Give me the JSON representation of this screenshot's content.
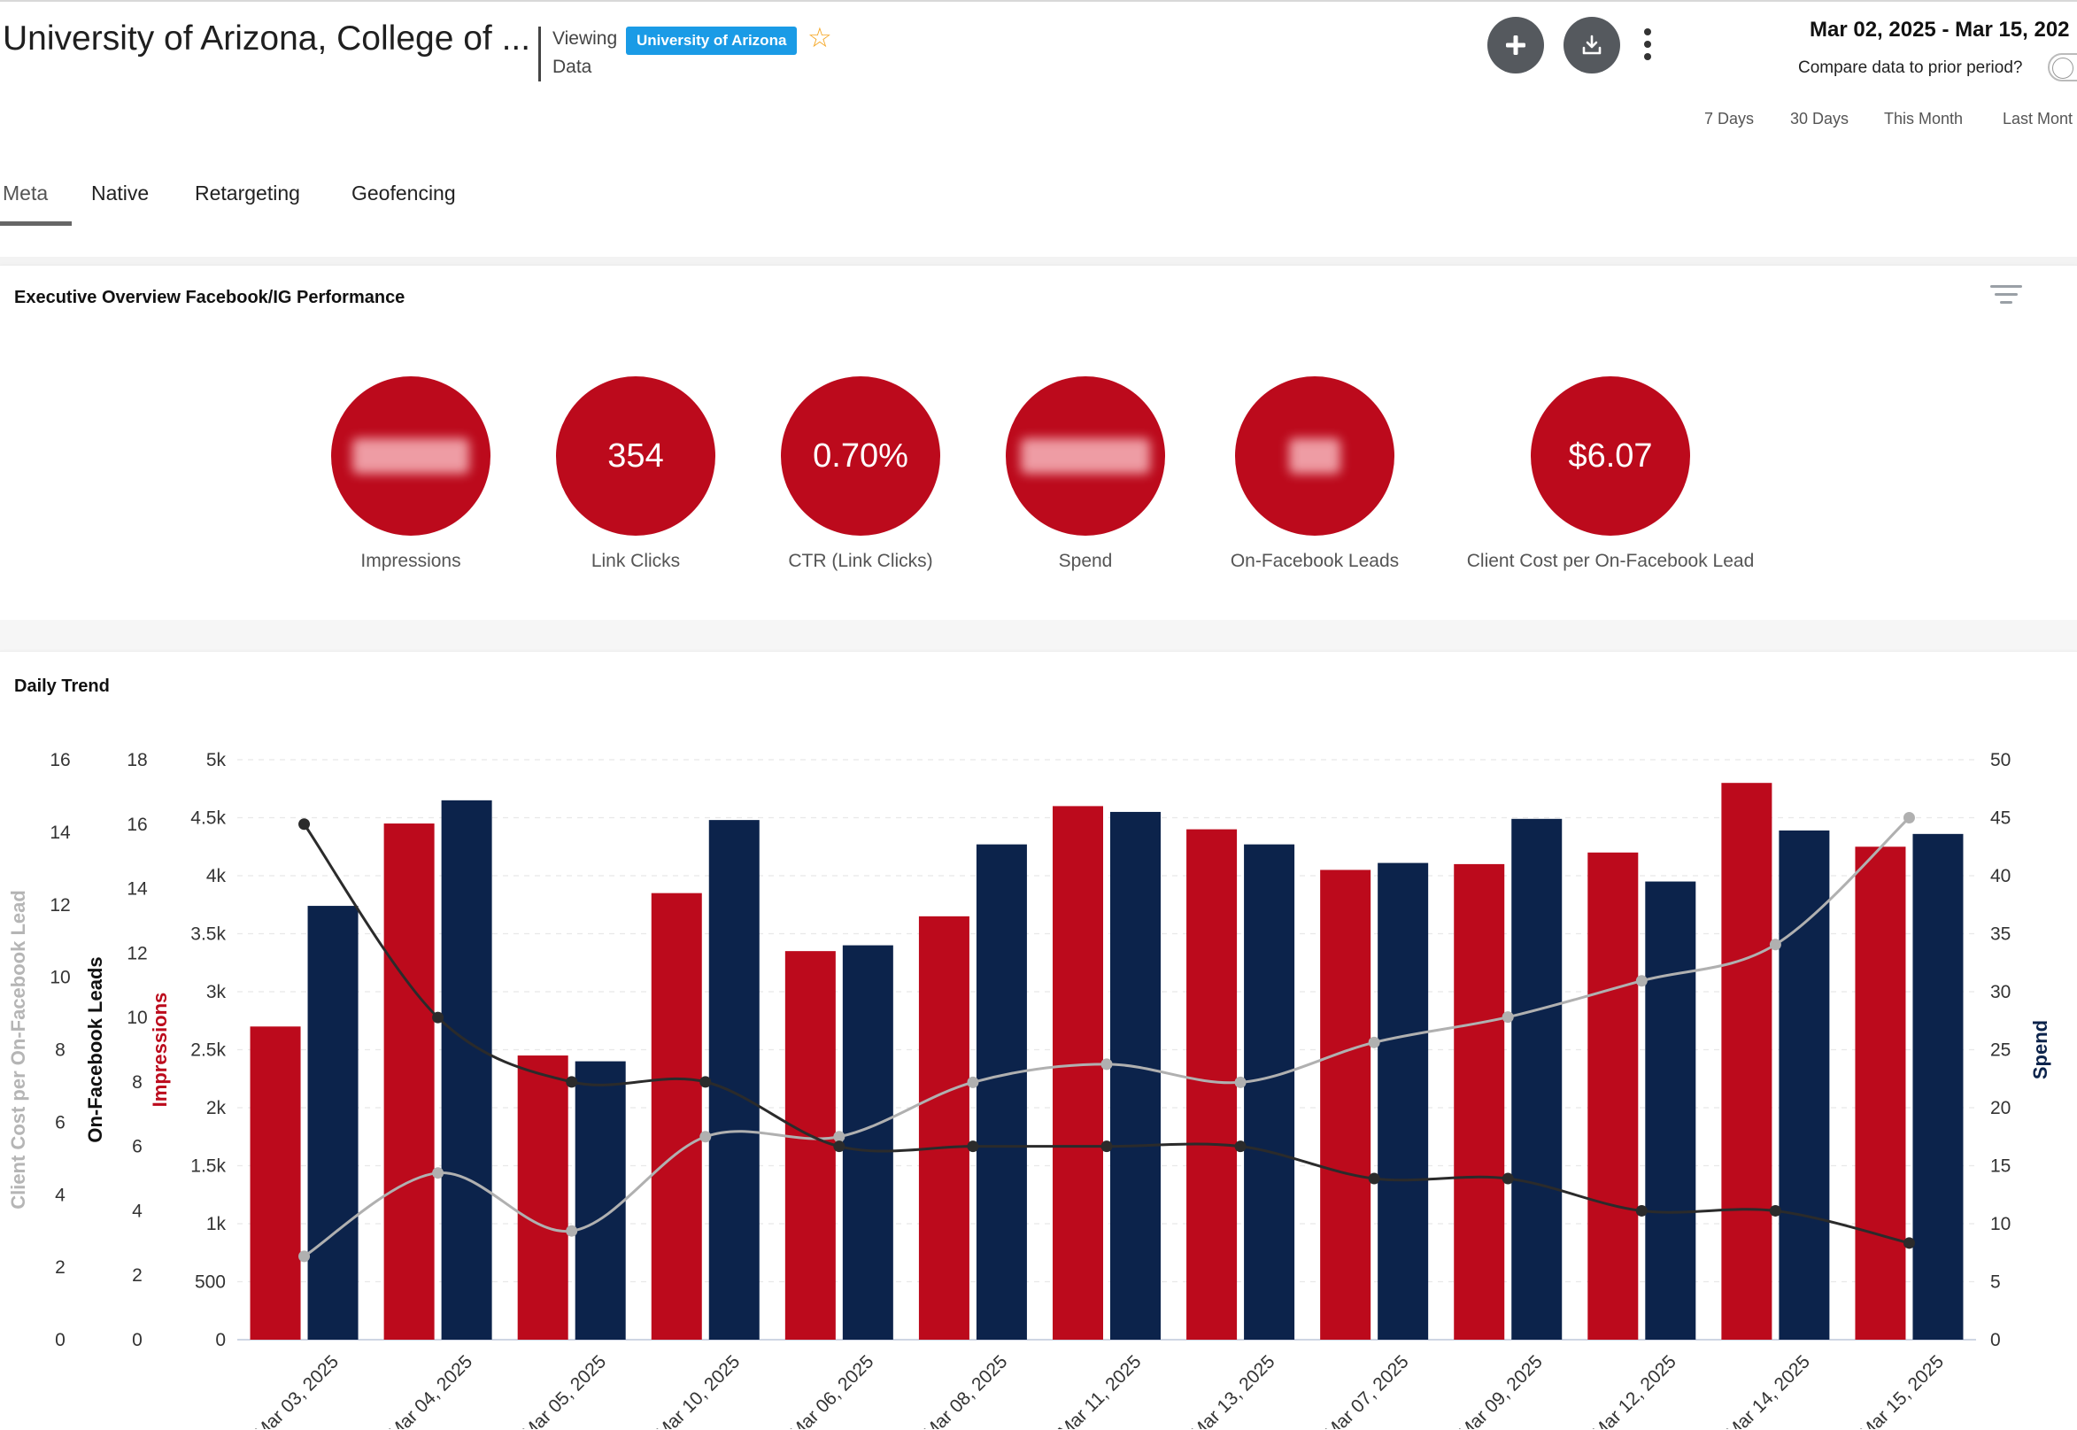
{
  "header": {
    "title": "University of Arizona, College of ...",
    "viewing_label": "Viewing",
    "viewing_data_label": "Data",
    "viewing_badge": "University of Arizona",
    "date_range": "Mar 02, 2025 - Mar 15, 202",
    "compare_label": "Compare data to prior period?",
    "compare_enabled": false,
    "presets": [
      "7 Days",
      "30 Days",
      "This Month",
      "Last Mont"
    ],
    "icons": [
      "star-icon",
      "plus-icon",
      "download-icon",
      "more-vertical-icon",
      "filter-icon"
    ]
  },
  "tabs": [
    {
      "label": "Meta",
      "active": true
    },
    {
      "label": "Native",
      "active": false
    },
    {
      "label": "Retargeting",
      "active": false
    },
    {
      "label": "Geofencing",
      "active": false
    }
  ],
  "overview": {
    "title": "Executive Overview Facebook/IG Performance",
    "kpis": [
      {
        "label": "Impressions",
        "value": "",
        "redacted": true
      },
      {
        "label": "Link Clicks",
        "value": "354",
        "redacted": false
      },
      {
        "label": "CTR (Link Clicks)",
        "value": "0.70%",
        "redacted": false
      },
      {
        "label": "Spend",
        "value": "",
        "redacted": true
      },
      {
        "label": "On-Facebook Leads",
        "value": "",
        "redacted": true
      },
      {
        "label": "Client Cost per On-Facebook Lead",
        "value": "$6.07",
        "redacted": false
      }
    ]
  },
  "colors": {
    "impressions": "#bc0a1c",
    "spend": "#0c234b",
    "leads_line": "#2b2b2b",
    "cost_line": "#b0b0b0",
    "kpi_circle": "#bc0a1c",
    "badge": "#1a9be6",
    "star": "#f5a623"
  },
  "trend": {
    "title": "Daily Trend",
    "chart_data": {
      "type": "bar",
      "categories": [
        "Mar 03, 2025",
        "Mar 04, 2025",
        "Mar 05, 2025",
        "Mar 10, 2025",
        "Mar 06, 2025",
        "Mar 08, 2025",
        "Mar 11, 2025",
        "Mar 13, 2025",
        "Mar 07, 2025",
        "Mar 09, 2025",
        "Mar 12, 2025",
        "Mar 14, 2025",
        "Mar 15, 2025"
      ],
      "series": [
        {
          "name": "Impressions",
          "kind": "bar",
          "axis": "Impressions",
          "values": [
            2700,
            4450,
            2450,
            3850,
            3350,
            3650,
            4600,
            4400,
            4050,
            4100,
            4200,
            4800,
            4250
          ]
        },
        {
          "name": "Spend",
          "kind": "bar",
          "axis": "Spend",
          "values": [
            37.4,
            46.5,
            24.0,
            44.8,
            34.0,
            42.7,
            45.5,
            42.7,
            41.1,
            44.9,
            39.5,
            43.9,
            43.6
          ]
        },
        {
          "name": "On-Facebook Leads",
          "kind": "line",
          "axis": "On-Facebook Leads",
          "values": [
            16,
            10,
            8,
            8,
            6,
            6,
            6,
            6,
            5,
            5,
            4,
            4,
            3
          ]
        },
        {
          "name": "Client Cost per On-Facebook Lead",
          "kind": "line",
          "axis": "Client Cost per On-Facebook Lead",
          "values": [
            2.3,
            4.6,
            3.0,
            5.6,
            5.6,
            7.1,
            7.6,
            7.1,
            8.2,
            8.9,
            9.9,
            10.9,
            14.4
          ]
        }
      ],
      "axes": [
        {
          "name": "Client Cost per On-Facebook Lead",
          "ticks": [
            "0",
            "2",
            "4",
            "6",
            "8",
            "10",
            "12",
            "14",
            "16"
          ],
          "range": [
            0,
            16
          ]
        },
        {
          "name": "On-Facebook Leads",
          "ticks": [
            "0",
            "2",
            "4",
            "6",
            "8",
            "10",
            "12",
            "14",
            "16",
            "18"
          ],
          "range": [
            0,
            18
          ]
        },
        {
          "name": "Impressions",
          "ticks": [
            "0",
            "500",
            "1k",
            "1.5k",
            "2k",
            "2.5k",
            "3k",
            "3.5k",
            "4k",
            "4.5k",
            "5k"
          ],
          "range": [
            0,
            5000
          ]
        },
        {
          "name": "Spend",
          "ticks": [
            "0",
            "5",
            "10",
            "15",
            "20",
            "25",
            "30",
            "35",
            "40",
            "45",
            "50"
          ],
          "range": [
            0,
            50
          ]
        }
      ],
      "grid": "horizontal dashed"
    }
  }
}
